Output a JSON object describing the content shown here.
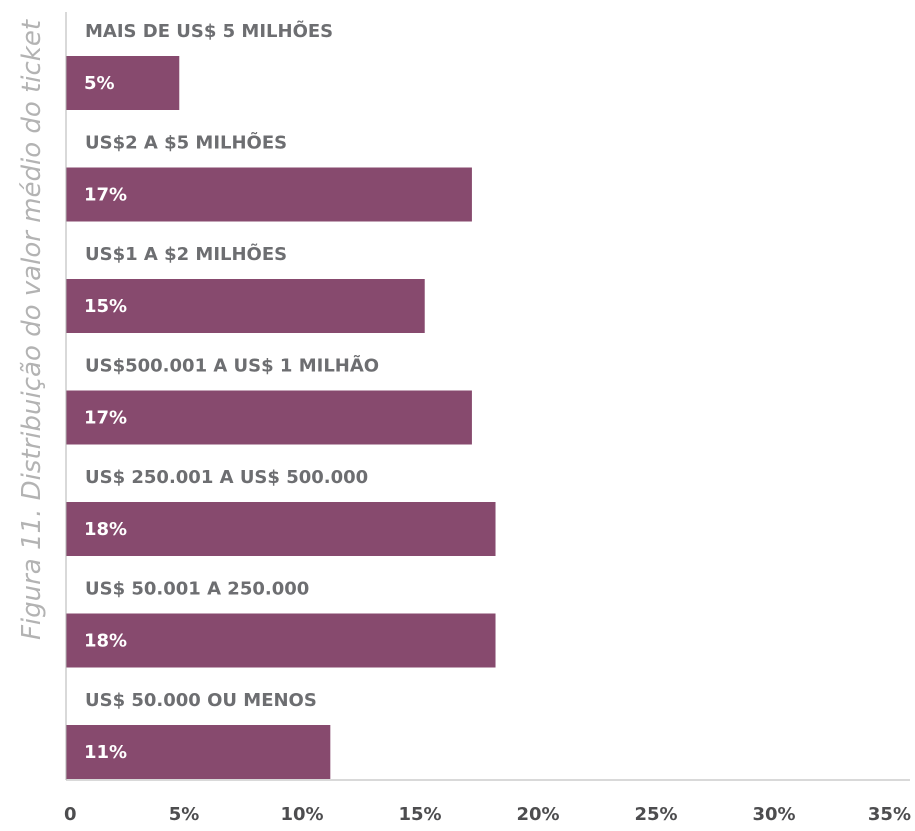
{
  "chart_data": {
    "type": "bar",
    "orientation": "horizontal",
    "title": "Figura 11. Distribuição do valor médio do ticket",
    "categories": [
      "MAIS DE US$ 5 MILHÕES",
      "US$2 A $5 MILHÕES",
      "US$1 A $2 MILHÕES",
      "US$500.001 A US$ 1 MILHÃO",
      "US$ 250.001 A US$ 500.000",
      "US$ 50.001 A 250.000",
      "US$ 50.000 OU MENOS"
    ],
    "values": [
      4.8,
      17.2,
      15.2,
      17.2,
      18.2,
      18.2,
      11.2
    ],
    "data_labels": [
      "5%",
      "17%",
      "15%",
      "17%",
      "18%",
      "18%",
      "11%"
    ],
    "xlim": [
      0,
      35
    ],
    "xticks": [
      "0",
      "5%",
      "10%",
      "15%",
      "20%",
      "25%",
      "30%",
      "35%"
    ],
    "grid": false,
    "legend": "none",
    "colors": {
      "bar": "#874a6e",
      "axis": "#b3b3b3"
    }
  }
}
